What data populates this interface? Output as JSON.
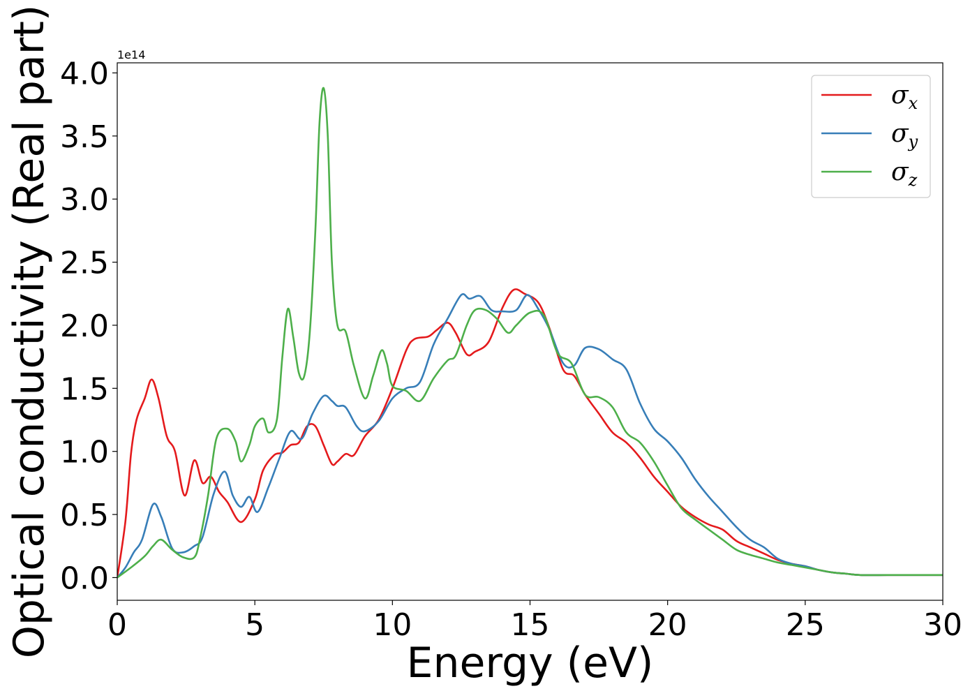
{
  "chart_data": {
    "type": "line",
    "xlabel": "Energy (eV)",
    "ylabel": "Optical conductivity (Real part)",
    "y_offset_label": "1e14",
    "xlim": [
      0,
      30
    ],
    "ylim": [
      -0.18,
      4.08
    ],
    "x_ticks": [
      0,
      5,
      10,
      15,
      20,
      25,
      30
    ],
    "x_tick_labels": [
      "0",
      "5",
      "10",
      "15",
      "20",
      "25",
      "30"
    ],
    "y_ticks": [
      0.0,
      0.5,
      1.0,
      1.5,
      2.0,
      2.5,
      3.0,
      3.5,
      4.0
    ],
    "y_tick_labels": [
      "0.0",
      "0.5",
      "1.0",
      "1.5",
      "2.0",
      "2.5",
      "3.0",
      "3.5",
      "4.0"
    ],
    "grid": false,
    "legend_position": "top-right",
    "series": [
      {
        "name": "σx",
        "symbol": "σ",
        "subscript": "x",
        "color": "#e41a1c",
        "x": [
          0,
          0.3,
          0.5,
          0.7,
          1.0,
          1.25,
          1.5,
          1.8,
          2.1,
          2.45,
          2.8,
          3.1,
          3.4,
          3.7,
          4.0,
          4.5,
          5.0,
          5.3,
          5.7,
          6.0,
          6.3,
          6.6,
          6.9,
          7.2,
          7.5,
          7.8,
          8.0,
          8.3,
          8.6,
          9.0,
          9.5,
          10.0,
          10.5,
          10.8,
          11.3,
          11.6,
          12.0,
          12.3,
          12.7,
          13.0,
          13.5,
          14.0,
          14.4,
          14.8,
          15.3,
          15.7,
          16.2,
          16.6,
          17.0,
          17.5,
          18.0,
          18.5,
          19.0,
          19.5,
          20.0,
          20.5,
          21.0,
          21.5,
          22.0,
          22.5,
          23.0,
          23.5,
          24.0,
          24.5,
          25.0,
          25.5,
          26.0,
          26.5,
          27.0,
          28.0,
          29.0,
          30.0
        ],
        "y": [
          0.0,
          0.45,
          0.98,
          1.25,
          1.42,
          1.57,
          1.42,
          1.12,
          1.0,
          0.65,
          0.93,
          0.75,
          0.8,
          0.68,
          0.6,
          0.44,
          0.62,
          0.85,
          0.97,
          0.99,
          1.05,
          1.07,
          1.2,
          1.2,
          1.05,
          0.9,
          0.92,
          0.98,
          0.97,
          1.12,
          1.25,
          1.5,
          1.8,
          1.89,
          1.91,
          1.96,
          2.02,
          1.94,
          1.77,
          1.79,
          1.87,
          2.14,
          2.28,
          2.25,
          2.18,
          1.98,
          1.65,
          1.6,
          1.45,
          1.3,
          1.15,
          1.07,
          0.95,
          0.8,
          0.68,
          0.56,
          0.48,
          0.42,
          0.38,
          0.29,
          0.24,
          0.19,
          0.14,
          0.11,
          0.09,
          0.06,
          0.04,
          0.03,
          0.02,
          0.02,
          0.02,
          0.02
        ]
      },
      {
        "name": "σy",
        "symbol": "σ",
        "subscript": "y",
        "color": "#377eb8",
        "x": [
          0,
          0.3,
          0.6,
          0.9,
          1.3,
          1.6,
          2.0,
          2.4,
          2.8,
          3.1,
          3.5,
          3.9,
          4.2,
          4.5,
          4.8,
          5.1,
          5.5,
          5.9,
          6.3,
          6.7,
          7.1,
          7.5,
          7.8,
          8.0,
          8.3,
          8.7,
          9.0,
          9.5,
          10.0,
          10.5,
          11.0,
          11.5,
          12.0,
          12.5,
          12.8,
          13.2,
          13.6,
          14.0,
          14.5,
          14.9,
          15.3,
          15.7,
          16.2,
          16.6,
          17.0,
          17.5,
          18.0,
          18.5,
          19.0,
          19.5,
          20.0,
          20.5,
          21.0,
          21.5,
          22.0,
          22.5,
          23.0,
          23.5,
          24.0,
          24.5,
          25.0,
          25.5,
          26.0,
          26.5,
          27.0,
          28.0,
          29.0,
          30.0
        ],
        "y": [
          0.0,
          0.08,
          0.2,
          0.3,
          0.58,
          0.48,
          0.23,
          0.2,
          0.25,
          0.32,
          0.66,
          0.84,
          0.65,
          0.56,
          0.64,
          0.52,
          0.72,
          0.95,
          1.16,
          1.1,
          1.3,
          1.44,
          1.4,
          1.36,
          1.35,
          1.2,
          1.16,
          1.24,
          1.42,
          1.5,
          1.55,
          1.85,
          2.05,
          2.24,
          2.21,
          2.23,
          2.12,
          2.11,
          2.12,
          2.24,
          2.13,
          1.97,
          1.7,
          1.68,
          1.82,
          1.81,
          1.73,
          1.65,
          1.38,
          1.18,
          1.08,
          0.95,
          0.78,
          0.64,
          0.52,
          0.4,
          0.3,
          0.24,
          0.15,
          0.11,
          0.09,
          0.06,
          0.04,
          0.03,
          0.02,
          0.02,
          0.02,
          0.02
        ]
      },
      {
        "name": "σz",
        "symbol": "σ",
        "subscript": "z",
        "color": "#4daf4a",
        "x": [
          0,
          0.5,
          1.0,
          1.3,
          1.6,
          2.0,
          2.4,
          2.8,
          3.0,
          3.3,
          3.6,
          4.0,
          4.3,
          4.5,
          4.8,
          5.0,
          5.3,
          5.5,
          5.8,
          6.0,
          6.2,
          6.4,
          6.6,
          6.8,
          7.0,
          7.2,
          7.35,
          7.5,
          7.65,
          7.8,
          8.0,
          8.3,
          8.6,
          9.0,
          9.3,
          9.6,
          9.8,
          10.0,
          10.5,
          11.0,
          11.5,
          12.0,
          12.3,
          12.7,
          13.0,
          13.4,
          13.8,
          14.2,
          14.5,
          15.0,
          15.5,
          16.0,
          16.5,
          17.0,
          17.5,
          18.0,
          18.5,
          19.0,
          19.5,
          20.0,
          20.5,
          21.0,
          21.5,
          22.0,
          22.5,
          23.0,
          23.5,
          24.0,
          24.5,
          25.0,
          25.5,
          26.0,
          26.5,
          27.0,
          28.0,
          29.0,
          30.0
        ],
        "y": [
          0.0,
          0.08,
          0.17,
          0.25,
          0.3,
          0.22,
          0.16,
          0.16,
          0.3,
          0.65,
          1.1,
          1.18,
          1.08,
          0.92,
          1.05,
          1.2,
          1.26,
          1.15,
          1.25,
          1.75,
          2.13,
          1.9,
          1.62,
          1.6,
          1.95,
          2.75,
          3.6,
          3.88,
          3.5,
          2.5,
          2.0,
          1.95,
          1.68,
          1.42,
          1.6,
          1.8,
          1.7,
          1.52,
          1.48,
          1.4,
          1.58,
          1.72,
          1.76,
          2.0,
          2.12,
          2.12,
          2.05,
          1.94,
          2.0,
          2.1,
          2.08,
          1.78,
          1.7,
          1.45,
          1.43,
          1.35,
          1.15,
          1.07,
          0.92,
          0.73,
          0.55,
          0.46,
          0.38,
          0.3,
          0.22,
          0.18,
          0.15,
          0.12,
          0.1,
          0.08,
          0.06,
          0.04,
          0.03,
          0.02,
          0.02,
          0.02,
          0.02
        ]
      }
    ]
  }
}
